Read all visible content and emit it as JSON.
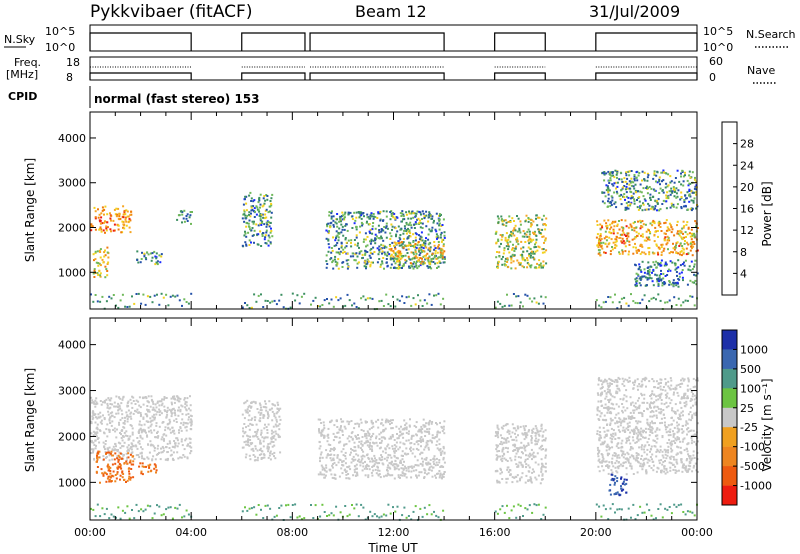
{
  "header": {
    "title": "Pykkvibaer (fitACF)",
    "beam": "Beam 12",
    "date": "31/Jul/2009"
  },
  "status_panels": {
    "nsky_label": "N.Sky",
    "nsky_ticks": [
      "10^5",
      "10^0"
    ],
    "nsearch_label": "N.Search",
    "nsearch_ticks": [
      "10^5",
      "10^0"
    ],
    "freq_label_1": "Freq.",
    "freq_label_2": "[MHz]",
    "freq_ticks": [
      "18",
      "8"
    ],
    "nave_label": "Nave",
    "nave_ticks": [
      "60",
      "0"
    ],
    "cpid_label": "CPID",
    "cpid_value": "normal (fast stereo) 153"
  },
  "colors": {
    "power": [
      "#1a2bff",
      "#2451a8",
      "#3c8f62",
      "#6fb85a",
      "#f2d21e",
      "#f5a623",
      "#ef7a0c",
      "#ee1c10"
    ],
    "velocity": [
      "#1d2fa8",
      "#3a67b0",
      "#4f9a8a",
      "#6cc442",
      "#c8c8c8",
      "#f0a020",
      "#ee8520",
      "#ee5a10",
      "#ee1c10"
    ],
    "ground_scatter": "#c0c0bc"
  },
  "chart_data": [
    {
      "type": "heatmap",
      "panel": "power",
      "ylabel": "Slant Range [km]",
      "xlabel": "",
      "ylim": [
        180,
        4580
      ],
      "yticks": [
        "1000",
        "2000",
        "3000",
        "4000"
      ],
      "colorbar": {
        "label": "Power [dB]",
        "ticks": [
          "4",
          "8",
          "12",
          "16",
          "20",
          "24",
          "28"
        ],
        "range": [
          0,
          30
        ]
      },
      "data_windows_ut": [
        [
          0,
          4
        ],
        [
          6,
          8.5
        ],
        [
          8.7,
          14
        ],
        [
          16,
          18
        ],
        [
          20,
          24
        ]
      ],
      "scatter_regions": [
        {
          "t": [
            0.0,
            1.6
          ],
          "r": [
            1900,
            2500
          ],
          "power": 22
        },
        {
          "t": [
            0.1,
            0.7
          ],
          "r": [
            900,
            1600
          ],
          "power": 18
        },
        {
          "t": [
            1.8,
            2.8
          ],
          "r": [
            1200,
            1500
          ],
          "power": 10
        },
        {
          "t": [
            3.4,
            4.0
          ],
          "r": [
            2100,
            2400
          ],
          "power": 8
        },
        {
          "t": [
            6.0,
            7.2
          ],
          "r": [
            1600,
            2800
          ],
          "power": 10
        },
        {
          "t": [
            9.3,
            14.0
          ],
          "r": [
            1100,
            2400
          ],
          "power": 10
        },
        {
          "t": [
            11.8,
            14.0
          ],
          "r": [
            1200,
            1700
          ],
          "power": 18
        },
        {
          "t": [
            16.0,
            18.0
          ],
          "r": [
            1100,
            2300
          ],
          "power": 15
        },
        {
          "t": [
            20.0,
            24.0
          ],
          "r": [
            1400,
            2200
          ],
          "power": 20
        },
        {
          "t": [
            20.2,
            24.0
          ],
          "r": [
            2400,
            3300
          ],
          "power": 10
        },
        {
          "t": [
            21.5,
            24.0
          ],
          "r": [
            700,
            1300
          ],
          "power": 8
        }
      ]
    },
    {
      "type": "heatmap",
      "panel": "velocity",
      "ylabel": "Slant Range [km]",
      "xlabel": "Time UT",
      "ylim": [
        180,
        4580
      ],
      "yticks": [
        "1000",
        "2000",
        "3000",
        "4000"
      ],
      "xticks": [
        "00:00",
        "04:00",
        "08:00",
        "12:00",
        "16:00",
        "20:00",
        "00:00"
      ],
      "xlim": [
        0,
        24
      ],
      "colorbar": {
        "label": "Velocity [m s⁻¹]",
        "ticks": [
          "1000",
          "500",
          "100",
          "25",
          "-25",
          "-100",
          "-500",
          "-1000"
        ]
      },
      "scatter_regions": [
        {
          "t": [
            0.0,
            4.0
          ],
          "r": [
            1500,
            2900
          ],
          "velocity": 0
        },
        {
          "t": [
            0.2,
            1.7
          ],
          "r": [
            1000,
            1700
          ],
          "velocity": -300
        },
        {
          "t": [
            1.9,
            2.7
          ],
          "r": [
            1200,
            1450
          ],
          "velocity": -300
        },
        {
          "t": [
            6.0,
            7.5
          ],
          "r": [
            1500,
            2800
          ],
          "velocity": 0
        },
        {
          "t": [
            9.0,
            14.0
          ],
          "r": [
            1100,
            2400
          ],
          "velocity": 0
        },
        {
          "t": [
            16.0,
            18.0
          ],
          "r": [
            1000,
            2300
          ],
          "velocity": 0
        },
        {
          "t": [
            20.0,
            24.0
          ],
          "r": [
            1200,
            3300
          ],
          "velocity": 0
        },
        {
          "t": [
            20.5,
            21.2
          ],
          "r": [
            700,
            1200
          ],
          "velocity": 600
        }
      ]
    }
  ]
}
